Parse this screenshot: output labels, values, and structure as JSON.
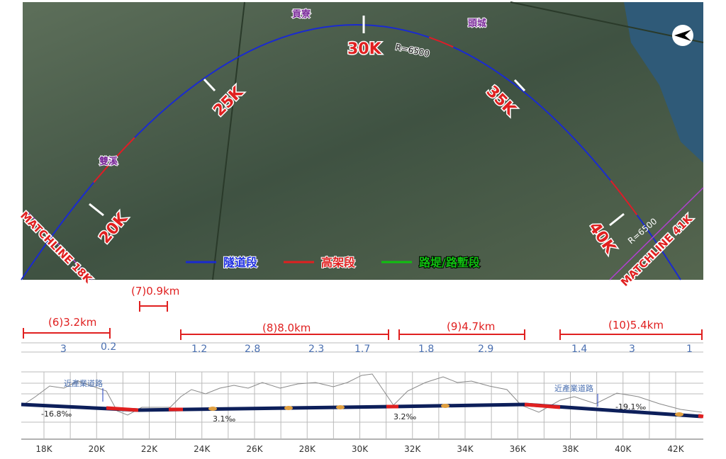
{
  "map": {
    "places": [
      "貢寮",
      "頭城",
      "雙溪"
    ],
    "stations": [
      "20K",
      "25K",
      "30K",
      "35K",
      "40K"
    ],
    "radius_labels": [
      "R=6500",
      "R=6500"
    ],
    "matchlines": [
      "MATCHLINE 18K",
      "MATCHLINE 41K"
    ],
    "legend": [
      "隧道段",
      "高架段",
      "路堤/路塹段"
    ]
  },
  "profile": {
    "segments": [
      {
        "label": "(6)3.2km",
        "parts": [
          "3",
          "0.2"
        ]
      },
      {
        "label": "(7)0.9km",
        "parts": []
      },
      {
        "label": "(8)8.0km",
        "parts": [
          "1.2",
          "2.8",
          "2.3",
          "1.7"
        ]
      },
      {
        "label": "(9)4.7km",
        "parts": [
          "1.8",
          "2.9"
        ]
      },
      {
        "label": "(10)5.4km",
        "parts": [
          "1.4",
          "3",
          "1"
        ]
      }
    ],
    "roads": [
      "近產業道路",
      "近產業道路"
    ],
    "grades": [
      "-16.8‰",
      "3.1‰",
      "3.2‰",
      "-19.1‰"
    ],
    "axis": [
      "18K",
      "20K",
      "22K",
      "24K",
      "26K",
      "28K",
      "30K",
      "32K",
      "34K",
      "36K",
      "38K",
      "40K",
      "42K"
    ]
  }
}
